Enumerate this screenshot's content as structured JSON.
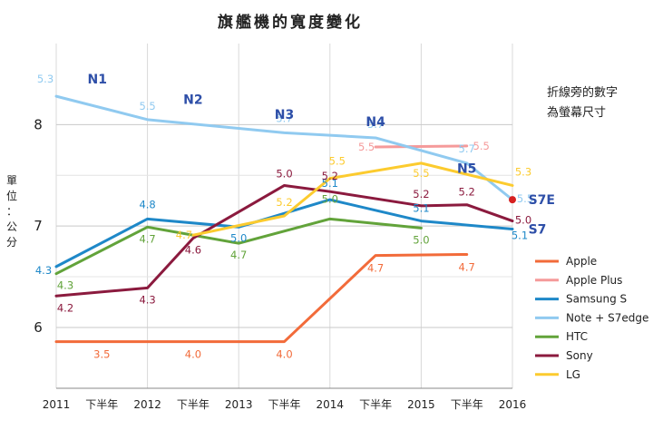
{
  "chart_data": {
    "type": "line",
    "title": "旗艦機的寬度變化",
    "ylabel": "單位：公分",
    "annotation": "折線旁的數字\n為螢幕尺寸",
    "x_labels": [
      "2011",
      "下半年",
      "2012",
      "下半年",
      "2013",
      "下半年",
      "2014",
      "下半年",
      "2015",
      "下半年",
      "2016"
    ],
    "y_ticks": [
      6,
      7,
      8
    ],
    "ylim": [
      5.4,
      8.8
    ],
    "grid": true,
    "legend_position": "bottom-right",
    "series": [
      {
        "name": "Apple",
        "color": "#F26B3A",
        "points": [
          [
            0,
            5.86,
            ""
          ],
          [
            1,
            5.86,
            "3.5"
          ],
          [
            3,
            5.86,
            "4.0"
          ],
          [
            5,
            5.86,
            "4.0"
          ],
          [
            7,
            6.71,
            "4.7"
          ],
          [
            9,
            6.72,
            "4.7"
          ]
        ]
      },
      {
        "name": "Apple Plus",
        "color": "#F59A9A",
        "points": [
          [
            7,
            7.78,
            "5.5"
          ],
          [
            9,
            7.79,
            "5.5"
          ]
        ]
      },
      {
        "name": "Samsung S",
        "color": "#1E88C8",
        "points": [
          [
            0,
            6.6,
            "4.3"
          ],
          [
            2,
            7.07,
            "4.8"
          ],
          [
            4,
            6.99,
            "5.0"
          ],
          [
            6,
            7.26,
            "5.1"
          ],
          [
            8,
            7.05,
            "5.1"
          ],
          [
            10,
            6.97,
            "5.1"
          ]
        ]
      },
      {
        "name": "Note + S7edge",
        "color": "#90CAF0",
        "points": [
          [
            0,
            8.28,
            "5.3"
          ],
          [
            2,
            8.05,
            "5.5"
          ],
          [
            5,
            7.92,
            "5.7"
          ],
          [
            7,
            7.87,
            "5.7"
          ],
          [
            9,
            7.62,
            "5.7"
          ],
          [
            10,
            7.26,
            "5.5"
          ]
        ]
      },
      {
        "name": "HTC",
        "color": "#62A33A",
        "points": [
          [
            0,
            6.53,
            "4.3"
          ],
          [
            2,
            6.99,
            "4.7"
          ],
          [
            4,
            6.83,
            "4.7"
          ],
          [
            6,
            7.07,
            "5.0"
          ],
          [
            8,
            6.98,
            "5.0"
          ]
        ]
      },
      {
        "name": "Sony",
        "color": "#8B1A3E",
        "points": [
          [
            0,
            6.31,
            "4.2"
          ],
          [
            2,
            6.39,
            "4.3"
          ],
          [
            3,
            6.88,
            "4.6"
          ],
          [
            5,
            7.4,
            "5.0"
          ],
          [
            6,
            7.34,
            "5.2"
          ],
          [
            8,
            7.2,
            "5.2"
          ],
          [
            9,
            7.21,
            "5.2"
          ],
          [
            10,
            7.05,
            "5.0"
          ]
        ]
      },
      {
        "name": "LG",
        "color": "#FCCB2E",
        "points": [
          [
            3,
            6.91,
            "4.7"
          ],
          [
            5,
            7.1,
            "5.2"
          ],
          [
            6,
            7.47,
            "5.5"
          ],
          [
            8,
            7.62,
            "5.5"
          ],
          [
            10,
            7.4,
            "5.3"
          ]
        ]
      }
    ],
    "model_labels": [
      {
        "text": "N1",
        "x": 0.9,
        "y": 8.45
      },
      {
        "text": "N2",
        "x": 3.0,
        "y": 8.25
      },
      {
        "text": "N3",
        "x": 5.0,
        "y": 8.1
      },
      {
        "text": "N4",
        "x": 7.0,
        "y": 8.03
      },
      {
        "text": "N5",
        "x": 9.0,
        "y": 7.57
      },
      {
        "text": "S7E",
        "x": 10.35,
        "y": 7.26
      },
      {
        "text": "S7",
        "x": 10.35,
        "y": 6.97
      }
    ],
    "marker": {
      "x": 10,
      "y": 7.26,
      "color": "#D62020"
    }
  }
}
